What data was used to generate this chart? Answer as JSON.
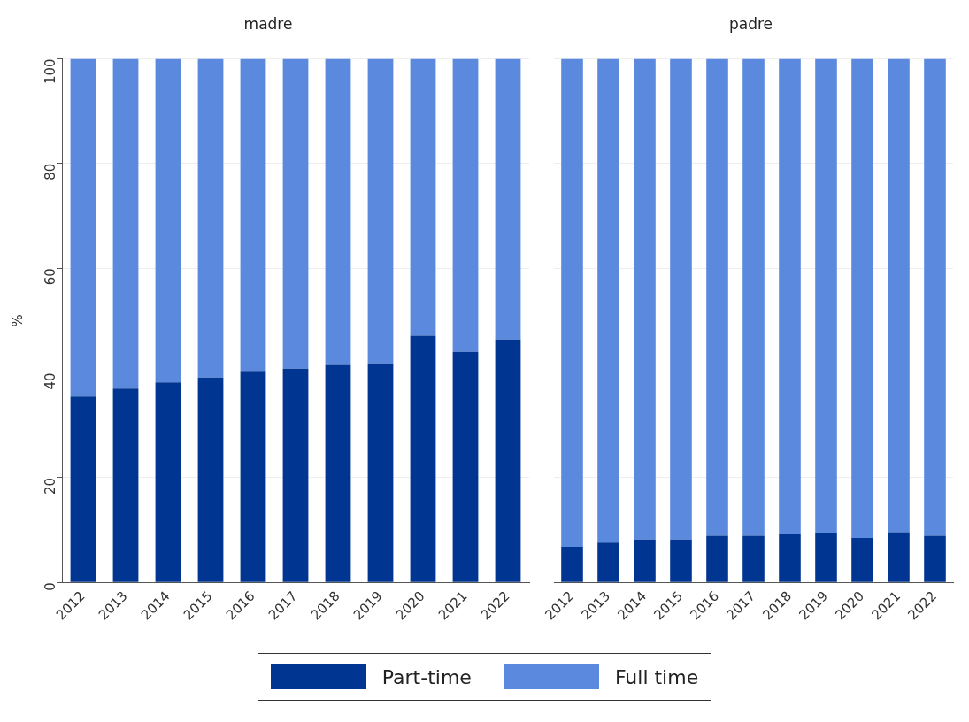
{
  "chart_data": [
    {
      "type": "bar",
      "title": "madre",
      "ylabel": "%",
      "stacked": true,
      "grid": "y",
      "legend": "bottom",
      "categories": [
        "2012",
        "2013",
        "2014",
        "2015",
        "2016",
        "2017",
        "2018",
        "2019",
        "2020",
        "2021",
        "2022"
      ],
      "ylim": [
        0,
        100
      ],
      "yticks": [
        0,
        20,
        40,
        60,
        80,
        100
      ],
      "series": [
        {
          "name": "Part-time",
          "color": "#003591",
          "values": [
            35.5,
            37.0,
            38.2,
            39.1,
            40.4,
            40.8,
            41.7,
            41.8,
            47.1,
            44.0,
            46.4
          ]
        },
        {
          "name": "Full time",
          "color": "#5b89de",
          "values": [
            64.5,
            63.0,
            61.8,
            60.9,
            59.6,
            59.2,
            58.3,
            58.2,
            52.9,
            56.0,
            53.6
          ]
        }
      ]
    },
    {
      "type": "bar",
      "title": "padre",
      "stacked": true,
      "grid": "y",
      "tick_labels": "x",
      "categories": [
        "2012",
        "2013",
        "2014",
        "2015",
        "2016",
        "2017",
        "2018",
        "2019",
        "2020",
        "2021",
        "2022"
      ],
      "ylim": [
        0,
        100
      ],
      "yticks": [
        0,
        20,
        40,
        60,
        80,
        100
      ],
      "series": [
        {
          "color": "#003591",
          "values": [
            6.8,
            7.6,
            8.2,
            8.2,
            8.9,
            8.9,
            9.3,
            9.5,
            8.5,
            9.6,
            8.9
          ]
        },
        {
          "color": "#5b89de",
          "values": [
            93.2,
            92.4,
            91.8,
            91.8,
            91.1,
            91.1,
            90.7,
            90.5,
            91.5,
            90.4,
            91.1
          ]
        }
      ]
    }
  ]
}
